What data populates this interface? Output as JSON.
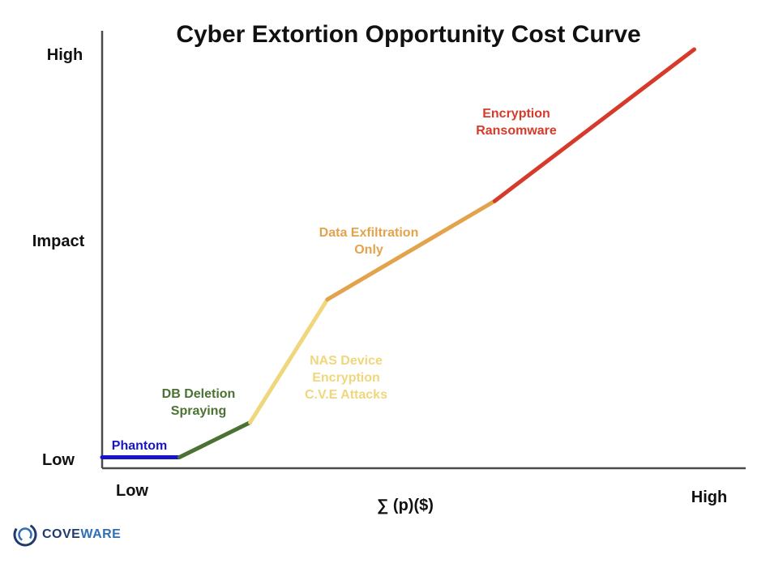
{
  "chart_data": {
    "type": "line",
    "title": "Cyber Extortion Opportunity Cost Curve",
    "xlabel": "∑ (p)($)",
    "ylabel": "Impact",
    "x_tick_labels": [
      "Low",
      "High"
    ],
    "y_tick_labels": [
      "Low",
      "High"
    ],
    "xlim": [
      0,
      100
    ],
    "ylim": [
      0,
      100
    ],
    "grid": false,
    "series": [
      {
        "name": "Phantom",
        "color": "#1616c8",
        "x": [
          0,
          12
        ],
        "y": [
          0.5,
          0.5
        ]
      },
      {
        "name": "DB Deletion Spraying",
        "label_lines": [
          "DB Deletion",
          "Spraying"
        ],
        "color": "#4a7232",
        "x": [
          12,
          23
        ],
        "y": [
          0.5,
          9
        ]
      },
      {
        "name": "NAS Device Encryption C.V.E Attacks",
        "label_lines": [
          "NAS Device",
          "Encryption",
          "C.V.E Attacks"
        ],
        "color": "#f0d67c",
        "x": [
          23,
          35
        ],
        "y": [
          9,
          39
        ]
      },
      {
        "name": "Data Exfiltration Only",
        "label_lines": [
          "Data Exfiltration",
          "Only"
        ],
        "color": "#e3a34c",
        "x": [
          35,
          61
        ],
        "y": [
          39,
          63
        ]
      },
      {
        "name": "Encryption Ransomware",
        "label_lines": [
          "Encryption",
          "Ransomware"
        ],
        "color": "#d63a2b",
        "x": [
          61,
          92
        ],
        "y": [
          63,
          100
        ]
      }
    ]
  },
  "logo": {
    "text_part1": "COVE",
    "text_part2": "WARE"
  }
}
